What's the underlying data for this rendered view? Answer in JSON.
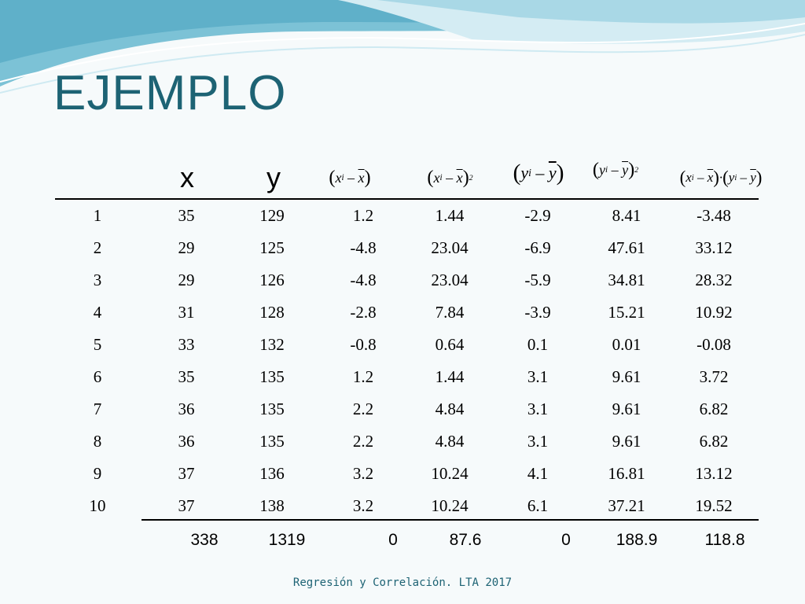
{
  "slide": {
    "title": "EJEMPLO",
    "footer": "Regresión y Correlación. LTA 2017"
  },
  "table": {
    "columns": [
      {
        "label": "x"
      },
      {
        "label": "y"
      },
      {
        "label": "(xi − x̄)"
      },
      {
        "label": "(xi − x̄)²"
      },
      {
        "label": "(yi − ȳ)"
      },
      {
        "label": "(yi − ȳ)²"
      },
      {
        "label": "(xi − x̄)·(yi − ȳ)"
      }
    ],
    "rows": [
      [
        "1",
        "35",
        "129",
        "1.2",
        "1.44",
        "-2.9",
        "8.41",
        "-3.48"
      ],
      [
        "2",
        "29",
        "125",
        "-4.8",
        "23.04",
        "-6.9",
        "47.61",
        "33.12"
      ],
      [
        "3",
        "29",
        "126",
        "-4.8",
        "23.04",
        "-5.9",
        "34.81",
        "28.32"
      ],
      [
        "4",
        "31",
        "128",
        "-2.8",
        "7.84",
        "-3.9",
        "15.21",
        "10.92"
      ],
      [
        "5",
        "33",
        "132",
        "-0.8",
        "0.64",
        "0.1",
        "0.01",
        "-0.08"
      ],
      [
        "6",
        "35",
        "135",
        "1.2",
        "1.44",
        "3.1",
        "9.61",
        "3.72"
      ],
      [
        "7",
        "36",
        "135",
        "2.2",
        "4.84",
        "3.1",
        "9.61",
        "6.82"
      ],
      [
        "8",
        "36",
        "135",
        "2.2",
        "4.84",
        "3.1",
        "9.61",
        "6.82"
      ],
      [
        "9",
        "37",
        "136",
        "3.2",
        "10.24",
        "4.1",
        "16.81",
        "13.12"
      ],
      [
        "10",
        "37",
        "138",
        "3.2",
        "10.24",
        "6.1",
        "37.21",
        "19.52"
      ]
    ],
    "totals": [
      "338",
      "1319",
      "0",
      "87.6",
      "0",
      "188.9",
      "118.8"
    ]
  },
  "colors": {
    "title": "#1d6374",
    "background": "#f6fafb",
    "wave_dark": "#63b4cc",
    "wave_light": "#bfe1ec"
  }
}
